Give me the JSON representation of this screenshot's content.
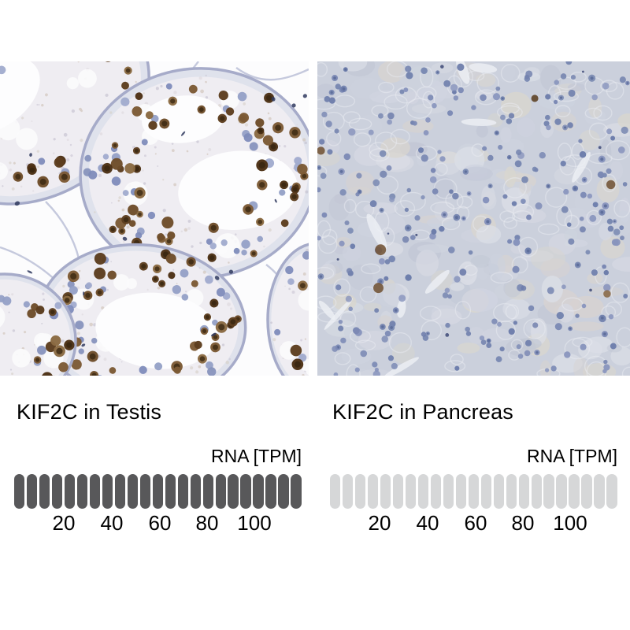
{
  "figure": {
    "panels": [
      {
        "title": "KIF2C in Testis",
        "rna_label": "RNA [TPM]",
        "ticks": [
          "20",
          "40",
          "60",
          "80",
          "100"
        ],
        "pills": {
          "total": 23,
          "filled": 23,
          "filled_color": "#58585a",
          "empty_color": "#d6d7d8"
        }
      },
      {
        "title": "KIF2C in Pancreas",
        "rna_label": "RNA [TPM]",
        "ticks": [
          "20",
          "40",
          "60",
          "80",
          "100"
        ],
        "pills": {
          "total": 23,
          "filled": 0,
          "filled_color": "#58585a",
          "empty_color": "#d6d7d8"
        }
      }
    ]
  },
  "colors": {
    "background": "#ffffff",
    "text": "#000000",
    "gauge_filled": "#58585a",
    "gauge_empty": "#d6d7d8",
    "ihc_hematoxylin_blue": "#93a0c6",
    "ihc_dab_brown": "#5d3e1f",
    "ihc_stroma_lavender": "#a6abc9"
  },
  "chart_data": [
    {
      "type": "bar",
      "title": "KIF2C in Testis",
      "unit_label": "RNA [TPM]",
      "axis_ticks": [
        20,
        40,
        60,
        80,
        100
      ],
      "axis_range": [
        0,
        115
      ],
      "segments_total": 23,
      "segments_filled": 23,
      "value_reading": "bar completely filled (dark) - expression ~115+ TPM, full scale",
      "bar_color": "#58585a",
      "empty_color": "#d6d7d8",
      "grid": false,
      "legend": "none"
    },
    {
      "type": "bar",
      "title": "KIF2C in Pancreas",
      "unit_label": "RNA [TPM]",
      "axis_ticks": [
        20,
        40,
        60,
        80,
        100
      ],
      "axis_range": [
        0,
        115
      ],
      "segments_total": 23,
      "segments_filled": 0,
      "value_reading": "bar completely empty (light) - expression ~0 TPM",
      "bar_color": "#58585a",
      "empty_color": "#d6d7d8",
      "grid": false,
      "legend": "none"
    }
  ]
}
